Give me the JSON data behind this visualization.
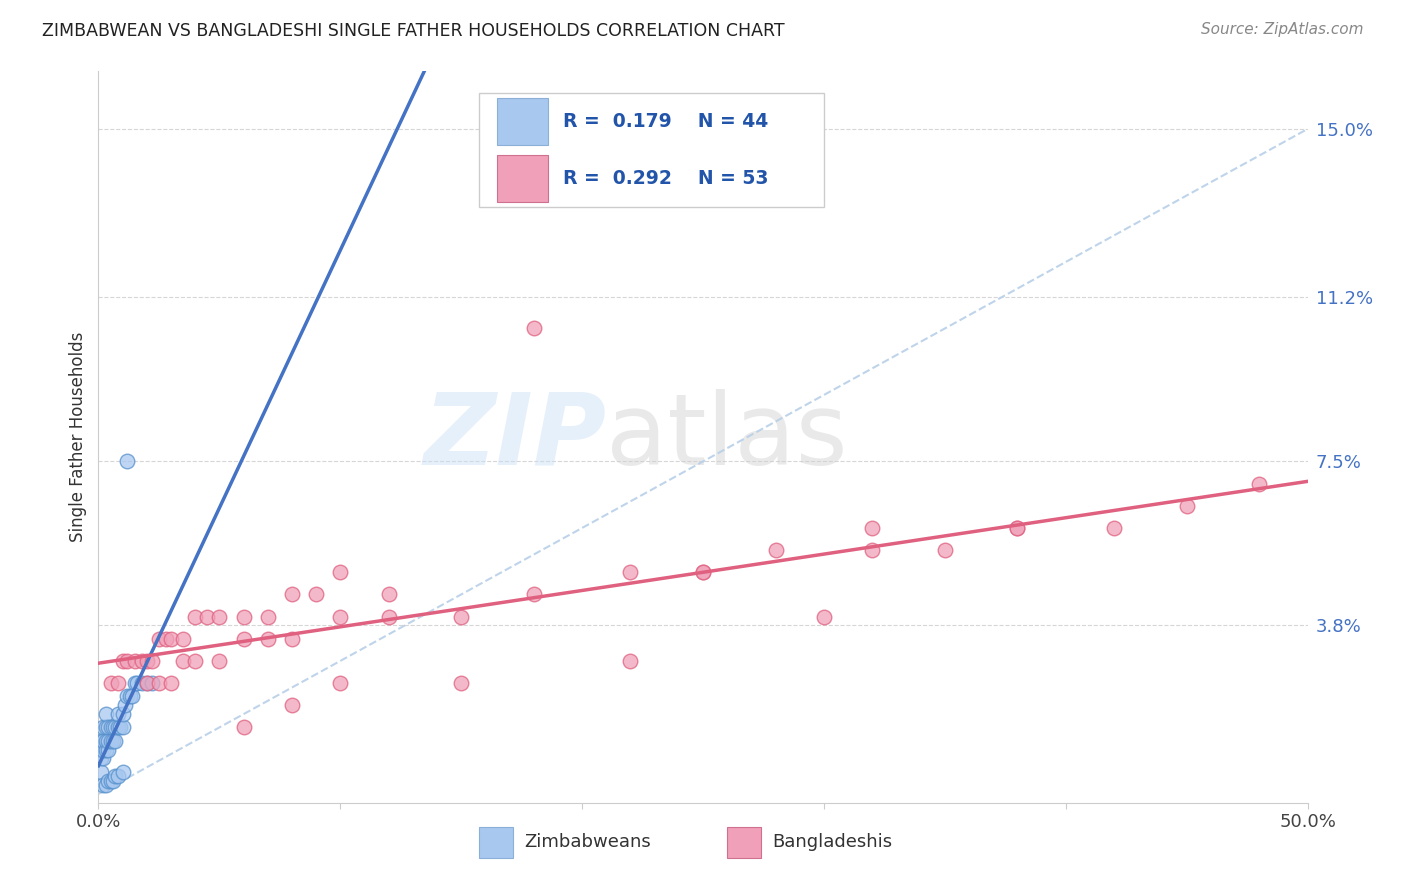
{
  "title": "ZIMBABWEAN VS BANGLADESHI SINGLE FATHER HOUSEHOLDS CORRELATION CHART",
  "source": "Source: ZipAtlas.com",
  "ylabel": "Single Father Households",
  "y_tick_labels_right": [
    "15.0%",
    "11.2%",
    "7.5%",
    "3.8%"
  ],
  "y_tick_values_right": [
    0.15,
    0.112,
    0.075,
    0.038
  ],
  "xlim": [
    0.0,
    0.5
  ],
  "ylim": [
    0.0,
    0.16
  ],
  "legend_label1_R": "0.179",
  "legend_label1_N": "44",
  "legend_label2_R": "0.292",
  "legend_label2_N": "53",
  "zim_color": "#a8c8f0",
  "bang_color": "#f0a0b8",
  "zim_edge": "#5590cc",
  "bang_edge": "#e06080",
  "trend_blue": "#4472c4",
  "trend_pink": "#e06080",
  "trend_dash_color": "#b8d0e8",
  "background_color": "#ffffff",
  "grid_color": "#cccccc",
  "zim_points_x": [
    0.001,
    0.001,
    0.001,
    0.001,
    0.002,
    0.002,
    0.002,
    0.002,
    0.003,
    0.003,
    0.003,
    0.003,
    0.004,
    0.004,
    0.004,
    0.005,
    0.005,
    0.006,
    0.006,
    0.007,
    0.007,
    0.008,
    0.008,
    0.009,
    0.01,
    0.01,
    0.011,
    0.012,
    0.013,
    0.014,
    0.015,
    0.016,
    0.018,
    0.02,
    0.022,
    0.002,
    0.003,
    0.004,
    0.005,
    0.006,
    0.007,
    0.008,
    0.01,
    0.012
  ],
  "zim_points_y": [
    0.005,
    0.008,
    0.01,
    0.012,
    0.008,
    0.01,
    0.012,
    0.015,
    0.01,
    0.012,
    0.015,
    0.018,
    0.01,
    0.012,
    0.015,
    0.012,
    0.015,
    0.012,
    0.015,
    0.012,
    0.015,
    0.015,
    0.018,
    0.015,
    0.015,
    0.018,
    0.02,
    0.022,
    0.022,
    0.022,
    0.025,
    0.025,
    0.025,
    0.025,
    0.025,
    0.002,
    0.002,
    0.003,
    0.003,
    0.003,
    0.004,
    0.004,
    0.005,
    0.075
  ],
  "bang_points_x": [
    0.005,
    0.008,
    0.01,
    0.012,
    0.015,
    0.018,
    0.02,
    0.022,
    0.025,
    0.028,
    0.03,
    0.035,
    0.04,
    0.045,
    0.05,
    0.06,
    0.07,
    0.08,
    0.09,
    0.1,
    0.02,
    0.025,
    0.03,
    0.035,
    0.04,
    0.05,
    0.06,
    0.07,
    0.08,
    0.1,
    0.12,
    0.15,
    0.18,
    0.22,
    0.25,
    0.28,
    0.32,
    0.35,
    0.38,
    0.42,
    0.45,
    0.48,
    0.18,
    0.32,
    0.12,
    0.25,
    0.38,
    0.15,
    0.22,
    0.3,
    0.1,
    0.08,
    0.06
  ],
  "bang_points_y": [
    0.025,
    0.025,
    0.03,
    0.03,
    0.03,
    0.03,
    0.03,
    0.03,
    0.035,
    0.035,
    0.035,
    0.035,
    0.04,
    0.04,
    0.04,
    0.04,
    0.04,
    0.045,
    0.045,
    0.05,
    0.025,
    0.025,
    0.025,
    0.03,
    0.03,
    0.03,
    0.035,
    0.035,
    0.035,
    0.04,
    0.04,
    0.04,
    0.045,
    0.05,
    0.05,
    0.055,
    0.055,
    0.055,
    0.06,
    0.06,
    0.065,
    0.07,
    0.105,
    0.06,
    0.045,
    0.05,
    0.06,
    0.025,
    0.03,
    0.04,
    0.025,
    0.02,
    0.015
  ]
}
